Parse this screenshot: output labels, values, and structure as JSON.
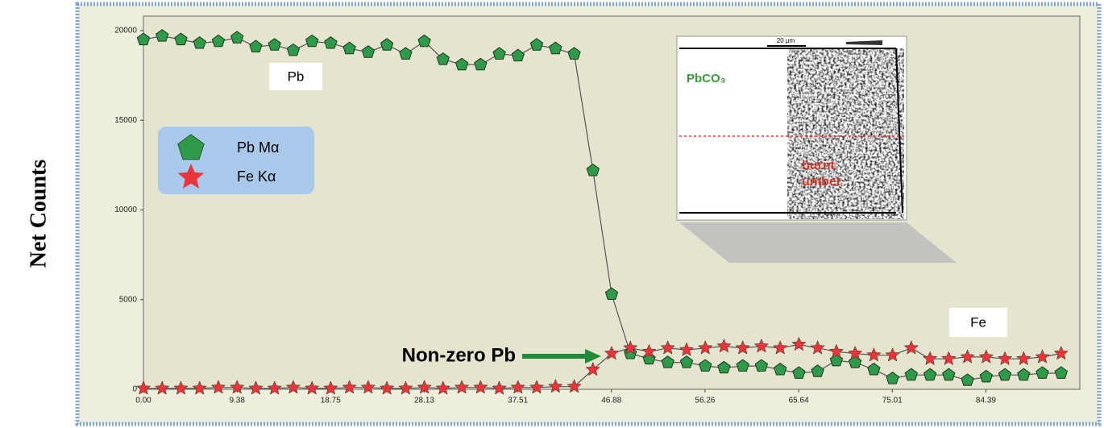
{
  "chart_data": {
    "type": "line",
    "y_label": "Net Counts",
    "x": [
      0,
      1.876,
      3.752,
      5.628,
      7.504,
      9.38,
      11.256,
      13.132,
      15.008,
      16.884,
      18.76,
      20.636,
      22.512,
      24.388,
      26.264,
      28.14,
      30.016,
      31.892,
      33.768,
      35.644,
      37.52,
      39.396,
      41.272,
      43.148,
      45.024,
      46.9,
      48.776,
      50.652,
      52.528,
      54.404,
      56.28,
      58.156,
      60.032,
      61.908,
      63.784,
      65.66,
      67.536,
      69.412,
      71.288,
      73.164,
      75.04,
      76.916,
      78.792,
      80.668,
      82.544,
      84.42,
      86.296,
      88.172,
      90.048,
      91.924
    ],
    "series": [
      {
        "name": "Pb Mα",
        "color": "#2f9a4a",
        "marker": "pentagon",
        "values": [
          19500,
          19700,
          19500,
          19300,
          19400,
          19600,
          19100,
          19200,
          18900,
          19400,
          19300,
          19000,
          18800,
          19200,
          18700,
          19400,
          18400,
          18100,
          18100,
          18700,
          18600,
          19200,
          19000,
          18700,
          12200,
          5300,
          2000,
          1700,
          1500,
          1500,
          1300,
          1200,
          1300,
          1300,
          1100,
          900,
          1000,
          1600,
          1500,
          1100,
          600,
          800,
          800,
          800,
          500,
          700,
          800,
          800,
          900,
          900
        ]
      },
      {
        "name": "Fe Kα",
        "color": "#e8343a",
        "marker": "star",
        "values": [
          50,
          50,
          50,
          50,
          100,
          100,
          50,
          50,
          100,
          50,
          50,
          100,
          100,
          50,
          50,
          100,
          50,
          100,
          100,
          50,
          100,
          100,
          150,
          150,
          1100,
          2000,
          2300,
          2100,
          2300,
          2200,
          2300,
          2400,
          2300,
          2400,
          2300,
          2500,
          2300,
          2100,
          2000,
          1900,
          1900,
          2300,
          1700,
          1700,
          1800,
          1800,
          1700,
          1700,
          1800,
          2000
        ]
      }
    ],
    "xlim": [
      0,
      93.8
    ],
    "xticks": [
      {
        "value": 0,
        "label": "0.00"
      },
      9.38,
      18.75,
      28.13,
      37.51,
      46.88,
      56.26,
      65.64,
      75.01,
      84.39
    ],
    "ylim": [
      0,
      20000
    ],
    "yticks": [
      0,
      5000,
      10000,
      15000,
      20000
    ],
    "annotations": {
      "pb": "Pb",
      "fe": "Fe",
      "nonzero": "Non-zero Pb"
    },
    "inset": {
      "phase1": "PbCO₃",
      "phase2": "burnt umber",
      "scale": "20 μm"
    }
  }
}
